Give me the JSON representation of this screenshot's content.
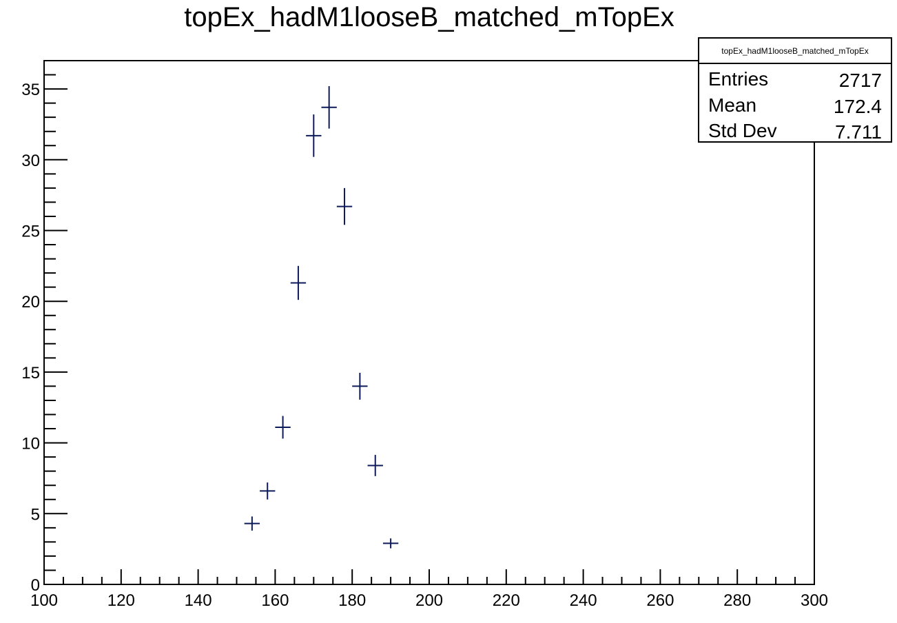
{
  "chart_data": {
    "type": "scatter",
    "title": "topEx_hadM1looseB_matched_mTopEx",
    "xlabel": "",
    "ylabel": "",
    "xlim": [
      100,
      300
    ],
    "ylim": [
      0,
      37
    ],
    "x_major_ticks": [
      100,
      120,
      140,
      160,
      180,
      200,
      220,
      240,
      260,
      280,
      300
    ],
    "x_tick_labels": [
      "100",
      "120",
      "140",
      "160",
      "180",
      "200",
      "220",
      "240",
      "260",
      "280",
      "300"
    ],
    "y_major_ticks": [
      0,
      5,
      10,
      15,
      20,
      25,
      30,
      35
    ],
    "y_tick_labels": [
      "0",
      "5",
      "10",
      "15",
      "20",
      "25",
      "30",
      "35"
    ],
    "grid": false,
    "marker_color": "#0d1a5a",
    "series": [
      {
        "name": "topEx_hadM1looseB_matched_mTopEx",
        "points": [
          {
            "x": 154,
            "y": 4.3,
            "xerr": 2,
            "yerr": 0.5
          },
          {
            "x": 158,
            "y": 6.6,
            "xerr": 2,
            "yerr": 0.6
          },
          {
            "x": 162,
            "y": 11.1,
            "xerr": 2,
            "yerr": 0.8
          },
          {
            "x": 166,
            "y": 21.3,
            "xerr": 2,
            "yerr": 1.2
          },
          {
            "x": 170,
            "y": 31.7,
            "xerr": 2,
            "yerr": 1.5
          },
          {
            "x": 174,
            "y": 33.7,
            "xerr": 2,
            "yerr": 1.5
          },
          {
            "x": 178,
            "y": 26.7,
            "xerr": 2,
            "yerr": 1.3
          },
          {
            "x": 182,
            "y": 14.0,
            "xerr": 2,
            "yerr": 0.95
          },
          {
            "x": 186,
            "y": 8.4,
            "xerr": 2,
            "yerr": 0.75
          },
          {
            "x": 190,
            "y": 2.9,
            "xerr": 2,
            "yerr": 0.35
          }
        ]
      }
    ],
    "stats_box": {
      "title": "topEx_hadM1looseB_matched_mTopEx",
      "placement": "top-right",
      "rows": [
        {
          "label": "Entries",
          "value": "2717"
        },
        {
          "label": "Mean",
          "value": "172.4"
        },
        {
          "label": "Std Dev",
          "value": "7.711"
        }
      ]
    }
  }
}
